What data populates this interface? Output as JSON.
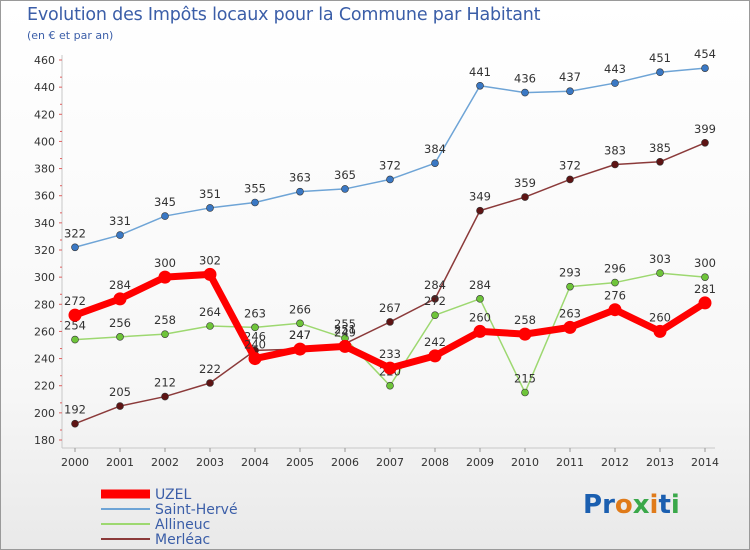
{
  "header": {
    "title": "Evolution des Impôts locaux pour la Commune par Habitant",
    "subtitle": "(en € et par an)"
  },
  "logo": {
    "text": "Proxiti",
    "letters": [
      {
        "ch": "P",
        "color": "#1b5fb0"
      },
      {
        "ch": "r",
        "color": "#1b5fb0"
      },
      {
        "ch": "o",
        "color": "#e07b1a"
      },
      {
        "ch": "x",
        "color": "#3aa84a"
      },
      {
        "ch": "i",
        "color": "#e07b1a"
      },
      {
        "ch": "t",
        "color": "#1b5fb0"
      },
      {
        "ch": "i",
        "color": "#3aa84a"
      }
    ]
  },
  "chart_data": {
    "type": "line",
    "title": "Evolution des Impôts locaux pour la Commune par Habitant",
    "subtitle": "(en € et par an)",
    "x": [
      2000,
      2001,
      2002,
      2003,
      2004,
      2005,
      2006,
      2007,
      2008,
      2009,
      2010,
      2011,
      2012,
      2013,
      2014
    ],
    "ylim": [
      180,
      460
    ],
    "yticks": [
      180,
      200,
      220,
      240,
      260,
      280,
      300,
      320,
      340,
      360,
      380,
      400,
      420,
      440,
      460
    ],
    "grid": false,
    "legend": "bottom-left",
    "series": [
      {
        "name": "Saint-Hervé",
        "color": "#6ea4d6",
        "marker": "#3a78c4",
        "values": [
          322,
          331,
          345,
          351,
          355,
          363,
          365,
          372,
          384,
          441,
          436,
          437,
          443,
          451,
          454
        ],
        "labels": [
          "322",
          "331",
          "345",
          "351",
          "355",
          "363",
          "365",
          "372",
          "384",
          "441",
          "436",
          "437",
          "443",
          "451",
          "454"
        ]
      },
      {
        "name": "Merléac",
        "color": "#8b3a3a",
        "marker": "#5e1414",
        "values": [
          192,
          205,
          212,
          222,
          246,
          247,
          251,
          267,
          284,
          349,
          359,
          372,
          383,
          385,
          399
        ],
        "labels": [
          "192",
          "205",
          "212",
          "222",
          "246",
          "247",
          "251",
          "267",
          "284",
          "349",
          "359",
          "372",
          "383",
          "385",
          "399"
        ]
      },
      {
        "name": "Allineuc",
        "color": "#9dd870",
        "marker": "#6ec43a",
        "values": [
          254,
          256,
          258,
          264,
          263,
          266,
          255,
          220,
          272,
          284,
          215,
          293,
          296,
          303,
          300
        ],
        "labels": [
          "254",
          "256",
          "258",
          "264",
          "263",
          "266",
          "255",
          "220",
          "272",
          "284",
          "215",
          "293",
          "296",
          "303",
          "300"
        ]
      },
      {
        "name": "UZEL",
        "color": "#ff0000",
        "marker": "#ff0000",
        "values": [
          272,
          284,
          300,
          302,
          240,
          247,
          249,
          233,
          242,
          260,
          258,
          263,
          276,
          260,
          281
        ],
        "labels": [
          "272",
          "284",
          "300",
          "302",
          "240",
          "247",
          "249",
          "233",
          "242",
          "260",
          "258",
          "263",
          "276",
          "260",
          "281"
        ]
      }
    ],
    "legend_order": [
      "UZEL",
      "Saint-Hervé",
      "Allineuc",
      "Merléac"
    ]
  }
}
